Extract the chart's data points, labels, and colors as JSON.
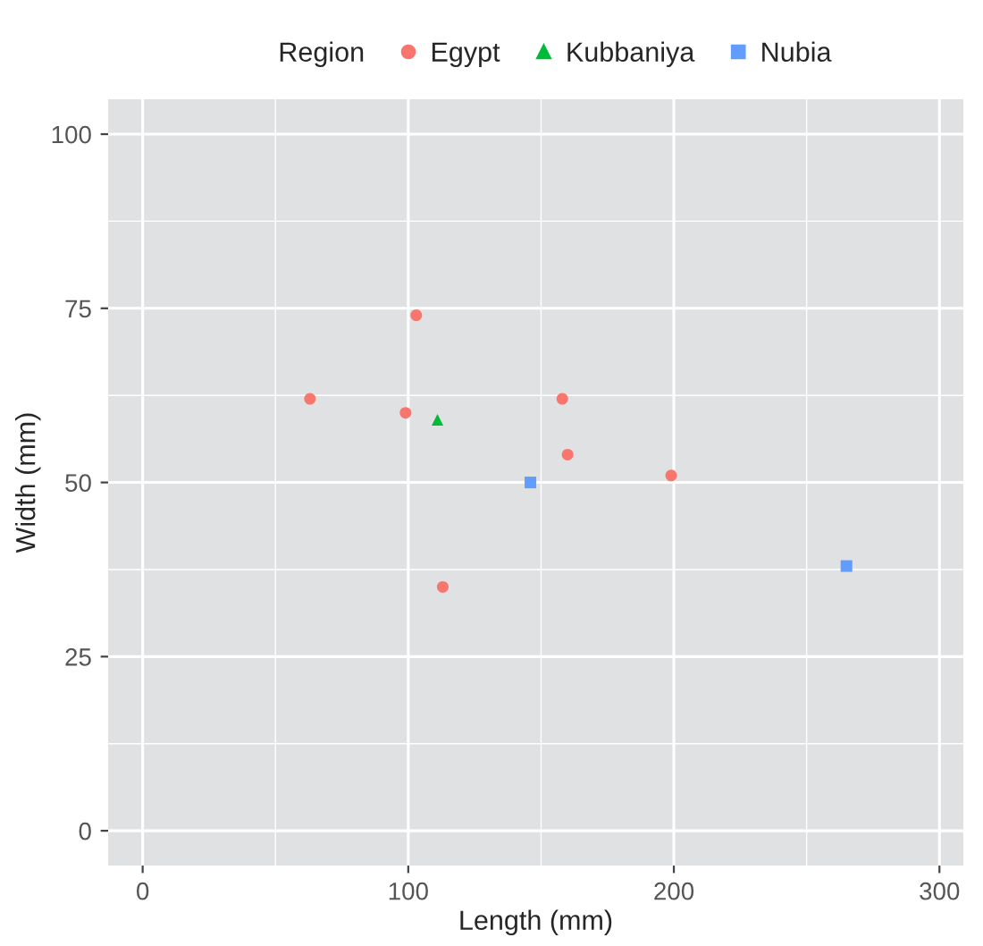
{
  "chart_data": {
    "type": "scatter",
    "xlabel": "Length (mm)",
    "ylabel": "Width (mm)",
    "legend_title": "Region",
    "legend": "top",
    "grid": true,
    "xlim": [
      -13,
      309
    ],
    "ylim": [
      -5,
      105
    ],
    "xticks": [
      0,
      100,
      200,
      300
    ],
    "yticks": [
      0,
      25,
      50,
      75,
      100
    ],
    "series": [
      {
        "name": "Egypt",
        "color": "#f8766d",
        "marker": "circle",
        "x": [
          63,
          103,
          99,
          158,
          160,
          199,
          113
        ],
        "values": [
          62,
          74,
          60,
          62,
          54,
          51,
          35
        ]
      },
      {
        "name": "Kubbaniya",
        "color": "#00ba38",
        "marker": "triangle",
        "x": [
          111
        ],
        "values": [
          59
        ]
      },
      {
        "name": "Nubia",
        "color": "#619cff",
        "marker": "square",
        "x": [
          146,
          265
        ],
        "values": [
          50,
          38
        ]
      }
    ]
  }
}
